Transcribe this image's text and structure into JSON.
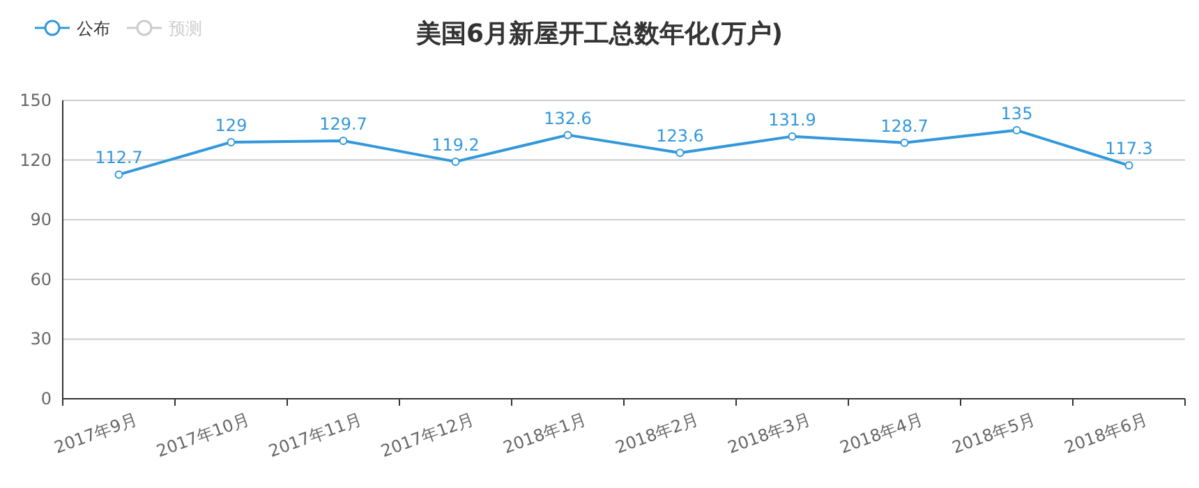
{
  "chart_data": {
    "type": "line",
    "title": "美国6月新屋开工总数年化(万户)",
    "categories": [
      "2017年9月",
      "2017年10月",
      "2017年11月",
      "2017年12月",
      "2018年1月",
      "2018年2月",
      "2018年3月",
      "2018年4月",
      "2018年5月",
      "2018年6月"
    ],
    "series": [
      {
        "name": "公布",
        "color": "#3398db",
        "values": [
          112.7,
          129,
          129.7,
          119.2,
          132.6,
          123.6,
          131.9,
          128.7,
          135,
          117.3
        ]
      },
      {
        "name": "预测",
        "color": "#cccccc",
        "values": [
          null,
          null,
          null,
          null,
          null,
          null,
          null,
          null,
          null,
          null
        ]
      }
    ],
    "ylim": [
      0,
      150
    ],
    "yticks": [
      0,
      30,
      60,
      90,
      120,
      150
    ],
    "grid": "y",
    "legend": "top left",
    "marker": "circle",
    "data_labels": true
  }
}
